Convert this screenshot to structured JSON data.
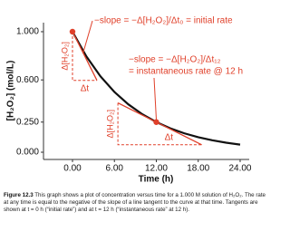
{
  "chart_data": {
    "type": "line",
    "y_label": "[H₂O₂] (mol/L)",
    "x_label": "Time (h)",
    "x": [
      0,
      2,
      4,
      6,
      8,
      10,
      12,
      14,
      16,
      18,
      20,
      22,
      24
    ],
    "series": [
      {
        "color": "#111111",
        "values": [
          1.0,
          0.794,
          0.63,
          0.5,
          0.397,
          0.315,
          0.25,
          0.198,
          0.157,
          0.125,
          0.099,
          0.079,
          0.063
        ]
      }
    ],
    "points": {
      "color": "#e0402a",
      "x": [
        0,
        12
      ],
      "values": [
        1.0,
        0.25
      ]
    },
    "tangents": [
      {
        "color": "#e0402a",
        "x": [
          0,
          3.5
        ],
        "values": [
          1.0,
          0.596
        ]
      },
      {
        "color": "#e0402a",
        "x": [
          6.5,
          18.5
        ],
        "values": [
          0.409,
          0.062
        ]
      }
    ],
    "xlim": [
      -4.15,
      25.3
    ],
    "ylim": [
      -0.06,
      1.075
    ],
    "xticks": [
      {
        "value": 0,
        "label": "0.00"
      },
      {
        "value": 6,
        "label": "6.00"
      },
      {
        "value": 12,
        "label": "12.00"
      },
      {
        "value": 18,
        "label": "18.00"
      },
      {
        "value": 24,
        "label": "24.00"
      }
    ],
    "yticks": [
      {
        "value": 0,
        "label": "0.000"
      },
      {
        "value": 0.25,
        "label": "0.250"
      },
      {
        "value": 0.6,
        "label": "0.600"
      },
      {
        "value": 1,
        "label": "1.000"
      }
    ],
    "annotations": {
      "initial_rate": "−slope = −Δ[H₂O₂]/Δt₀ = initial rate",
      "slope_12": "−slope = −Δ[H₂O₂]/Δt₁₂",
      "rate_12": "= instantaneous rate @ 12 h",
      "delta_c_0": "Δ[H₂O₂]",
      "delta_t_0": "Δt",
      "delta_c_12": "Δ[H₂O₂]",
      "delta_t_12": "Δt"
    }
  },
  "caption": {
    "label": "Figure 12.3",
    "text": "This graph shows a plot of concentration versus time for a 1.000 M solution of H₂O₂. The rate at any time is equal to the negative of the slope of a line tangent to the curve at that time. Tangents are shown at t = 0 h (“initial rate”) and at t = 12 h (“instantaneous rate” at 12 h)."
  }
}
